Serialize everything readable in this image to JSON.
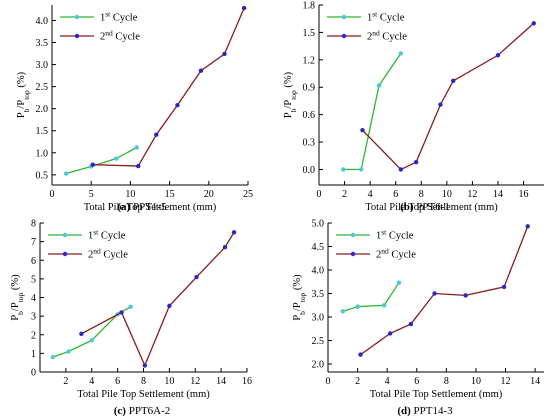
{
  "chart_data": [
    {
      "type": "line",
      "caption_id": "(a)",
      "caption_name": "PPT1-5",
      "xlabel": "Total Pile Top Settlement (mm)",
      "ylabel": "Pb/Ptop (%)",
      "xlim": [
        0,
        25
      ],
      "ylim": [
        0.27,
        4.35
      ],
      "xticks": [
        0,
        5,
        10,
        15,
        20,
        25
      ],
      "yticks": [
        0.5,
        1.0,
        1.5,
        2.0,
        2.5,
        3.0,
        3.5,
        4.0
      ],
      "ytick_labels": [
        "0.5",
        "1.0",
        "1.5",
        "2.0",
        "2.5",
        "3.0",
        "3.5",
        "4.0"
      ],
      "legend_position": "top-left",
      "series": [
        {
          "name": "1st Cycle",
          "color": "#2db82d",
          "marker": "#48c8e0",
          "points": [
            [
              1.8,
              0.53
            ],
            [
              5.0,
              0.69
            ],
            [
              8.2,
              0.87
            ],
            [
              10.8,
              1.12
            ]
          ]
        },
        {
          "name": "2nd Cycle",
          "color": "#8b1a1a",
          "marker": "#2828c8",
          "points": [
            [
              5.2,
              0.73
            ],
            [
              11.0,
              0.7
            ],
            [
              13.3,
              1.41
            ],
            [
              16.0,
              2.08
            ],
            [
              19.0,
              2.86
            ],
            [
              22.0,
              3.24
            ],
            [
              24.5,
              4.28
            ]
          ]
        }
      ]
    },
    {
      "type": "line",
      "caption_id": "(b)",
      "caption_name": "PPT6-1",
      "xlabel": "Total Pile Top Settlement (mm)",
      "ylabel": "Pb/Ptop (%)",
      "xlim": [
        0,
        17.6
      ],
      "ylim": [
        -0.17,
        1.8
      ],
      "xticks": [
        0,
        2,
        4,
        6,
        8,
        10,
        12,
        14,
        16
      ],
      "yticks": [
        0.0,
        0.3,
        0.6,
        0.9,
        1.2,
        1.5,
        1.8
      ],
      "ytick_labels": [
        "0.0",
        "0.3",
        "0.6",
        "0.9",
        "1.2",
        "1.5",
        "1.8"
      ],
      "legend_position": "top-left",
      "series": [
        {
          "name": "1st Cycle",
          "color": "#2db82d",
          "marker": "#48c8e0",
          "points": [
            [
              1.9,
              0.0
            ],
            [
              3.3,
              0.0
            ],
            [
              4.7,
              0.92
            ],
            [
              6.4,
              1.27
            ]
          ]
        },
        {
          "name": "2nd Cycle",
          "color": "#8b1a1a",
          "marker": "#2828c8",
          "points": [
            [
              3.4,
              0.43
            ],
            [
              6.4,
              0.0
            ],
            [
              7.6,
              0.08
            ],
            [
              9.5,
              0.71
            ],
            [
              10.5,
              0.97
            ],
            [
              14.0,
              1.25
            ],
            [
              16.8,
              1.6
            ]
          ]
        }
      ]
    },
    {
      "type": "line",
      "caption_id": "(c)",
      "caption_name": "PPT6A-2",
      "xlabel": "Total Pile Top Settlement (mm)",
      "ylabel": "Pb/Ptop (%)",
      "xlim": [
        0,
        16
      ],
      "ylim": [
        0,
        8
      ],
      "xticks": [
        2,
        4,
        6,
        8,
        10,
        12,
        14,
        16
      ],
      "yticks": [
        0,
        1,
        2,
        3,
        4,
        5,
        6,
        7,
        8
      ],
      "ytick_labels": [
        "0",
        "1",
        "2",
        "3",
        "4",
        "5",
        "6",
        "7",
        "8"
      ],
      "legend_position": "top-left",
      "series": [
        {
          "name": "1st Cycle",
          "color": "#2db82d",
          "marker": "#48c8e0",
          "points": [
            [
              1.0,
              0.8
            ],
            [
              2.2,
              1.1
            ],
            [
              4.0,
              1.7
            ],
            [
              6.0,
              3.1
            ],
            [
              7.0,
              3.5
            ]
          ]
        },
        {
          "name": "2nd Cycle",
          "color": "#8b1a1a",
          "marker": "#2828c8",
          "points": [
            [
              3.2,
              2.05
            ],
            [
              6.3,
              3.2
            ],
            [
              8.1,
              0.35
            ],
            [
              10.0,
              3.55
            ],
            [
              12.1,
              5.1
            ],
            [
              14.3,
              6.7
            ],
            [
              15.0,
              7.5
            ]
          ]
        }
      ]
    },
    {
      "type": "line",
      "caption_id": "(d)",
      "caption_name": "PPT14-3",
      "xlabel": "Total Pile Top Settlement (mm)",
      "ylabel": "Pb/Ptop (%)",
      "xlim": [
        0,
        14.6
      ],
      "ylim": [
        1.83,
        5.0
      ],
      "xticks": [
        0,
        2,
        4,
        6,
        8,
        10,
        12,
        14
      ],
      "yticks": [
        2.0,
        2.5,
        3.0,
        3.5,
        4.0,
        4.5,
        5.0
      ],
      "ytick_labels": [
        "2.0",
        "2.5",
        "3.0",
        "3.5",
        "4.0",
        "4.5",
        "5.0"
      ],
      "legend_position": "top-left",
      "series": [
        {
          "name": "1st Cycle",
          "color": "#2db82d",
          "marker": "#48c8e0",
          "points": [
            [
              1.0,
              3.12
            ],
            [
              2.0,
              3.22
            ],
            [
              3.8,
              3.25
            ],
            [
              4.8,
              3.73
            ]
          ]
        },
        {
          "name": "2nd Cycle",
          "color": "#8b1a1a",
          "marker": "#2828c8",
          "points": [
            [
              2.2,
              2.2
            ],
            [
              4.2,
              2.65
            ],
            [
              5.6,
              2.85
            ],
            [
              7.2,
              3.5
            ],
            [
              9.3,
              3.46
            ],
            [
              11.9,
              3.64
            ],
            [
              13.5,
              4.93
            ]
          ]
        }
      ]
    }
  ]
}
